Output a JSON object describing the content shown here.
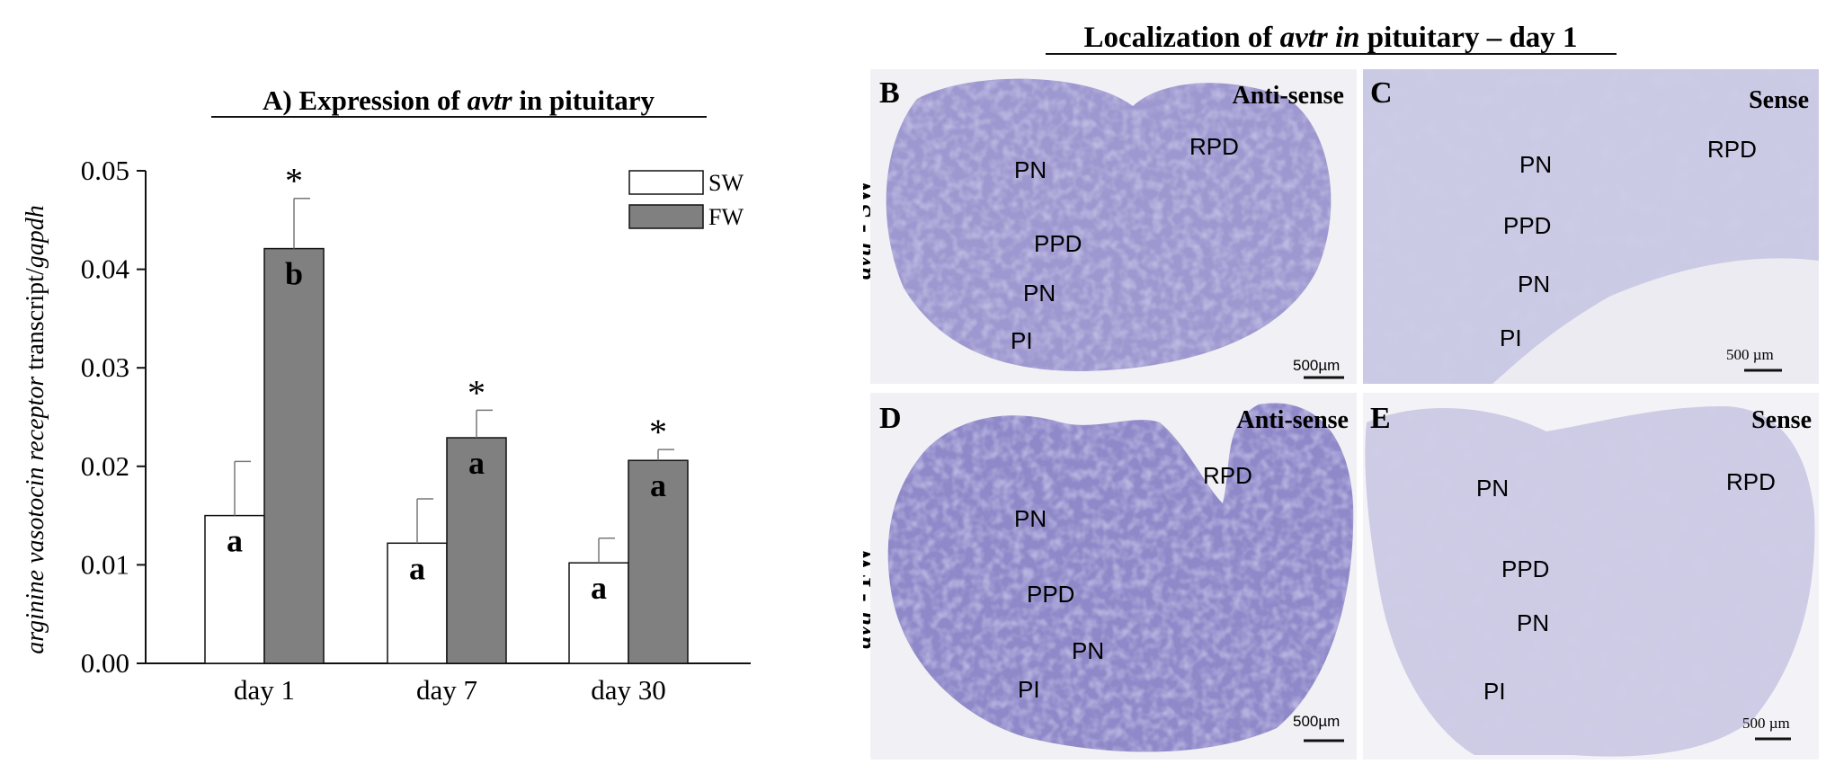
{
  "chart_data": {
    "type": "bar",
    "title_prefix": "A) Expression of ",
    "title_gene": "avtr",
    "title_suffix": " in pituitary",
    "ylabel_italic": "arginine vasotocin receptor",
    "ylabel_mid": " transcript/",
    "ylabel_gene": "gapdh",
    "ylim": [
      0,
      0.05
    ],
    "yticks": [
      "0.00",
      "0.01",
      "0.02",
      "0.03",
      "0.04",
      "0.05"
    ],
    "categories": [
      "day 1",
      "day 7",
      "day 30"
    ],
    "legend_position": "top-right",
    "series": [
      {
        "name": "SW",
        "values": [
          0.015,
          0.0122,
          0.0102
        ],
        "errors": [
          0.0055,
          0.0045,
          0.0025
        ],
        "letters": [
          "a",
          "a",
          "a"
        ],
        "stars": [
          "",
          "",
          ""
        ],
        "color": "#ffffff"
      },
      {
        "name": "FW",
        "values": [
          0.0421,
          0.0229,
          0.0206
        ],
        "errors": [
          0.0051,
          0.0028,
          0.0011
        ],
        "letters": [
          "b",
          "a",
          "a"
        ],
        "stars": [
          "*",
          "*",
          "*"
        ],
        "color": "#808080"
      }
    ]
  },
  "micrographs": {
    "title_prefix": "Localization of ",
    "title_gene": "avtr in",
    "title_suffix": " pituitary – day 1",
    "row_labels": [
      {
        "gene": "avtr",
        "rest": " - SW"
      },
      {
        "gene": "avtr",
        "rest": " - FW"
      }
    ],
    "panels": [
      {
        "letter": "B",
        "probe": "Anti-sense",
        "scale": "500µm",
        "labels": [
          "PN",
          "RPD",
          "PPD",
          "PN",
          "PI"
        ]
      },
      {
        "letter": "C",
        "probe": "Sense",
        "scale": "500 µm",
        "labels": [
          "PN",
          "RPD",
          "PPD",
          "PN",
          "PI"
        ]
      },
      {
        "letter": "D",
        "probe": "Anti-sense",
        "scale": "500µm",
        "labels": [
          "PN",
          "RPD",
          "PPD",
          "PN",
          "PI"
        ]
      },
      {
        "letter": "E",
        "probe": "Sense",
        "scale": "500 µm",
        "labels": [
          "PN",
          "RPD",
          "PPD",
          "PN",
          "PI"
        ]
      }
    ],
    "stain_color": "#8a84c8"
  }
}
